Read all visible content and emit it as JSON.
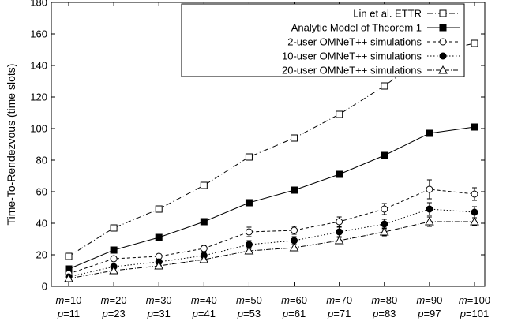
{
  "chart_data": {
    "type": "line",
    "title": "",
    "xlabel": "",
    "ylabel": "Time-To-Rendezvous (time slots)",
    "ylim": [
      0,
      180
    ],
    "yticks": [
      0,
      20,
      40,
      60,
      80,
      100,
      120,
      140,
      160,
      180
    ],
    "grid": false,
    "legend_position": "top-right",
    "categories": [
      {
        "m": "m=10",
        "p": "p=11"
      },
      {
        "m": "m=20",
        "p": "p=23"
      },
      {
        "m": "m=30",
        "p": "p=31"
      },
      {
        "m": "m=40",
        "p": "p=41"
      },
      {
        "m": "m=50",
        "p": "p=53"
      },
      {
        "m": "m=60",
        "p": "p=61"
      },
      {
        "m": "m=70",
        "p": "p=71"
      },
      {
        "m": "m=80",
        "p": "p=83"
      },
      {
        "m": "m=90",
        "p": "p=97"
      },
      {
        "m": "m=100",
        "p": "p=101"
      }
    ],
    "series": [
      {
        "name": "Lin et al. ETTR",
        "marker": "square-open",
        "dash": "7,3,1,3",
        "values": [
          19,
          37,
          49,
          64,
          82,
          94,
          109,
          127,
          148,
          154
        ]
      },
      {
        "name": "Analytic Model of Theorem 1",
        "marker": "square-filled",
        "dash": "",
        "values": [
          11,
          23,
          31,
          41,
          53,
          61,
          71,
          83,
          97,
          101
        ]
      },
      {
        "name": "2-user OMNeT++ simulations",
        "marker": "circle-open",
        "dash": "4,3",
        "values": [
          8,
          17.5,
          19,
          24,
          34.5,
          35.5,
          41,
          49,
          61.5,
          58.5
        ],
        "errors": [
          1,
          1.5,
          1.5,
          2,
          3,
          2.5,
          3,
          3.5,
          6,
          4
        ]
      },
      {
        "name": "10-user OMNeT++ simulations",
        "marker": "circle-filled",
        "dash": "1.5,2.5",
        "values": [
          6,
          12.5,
          15.5,
          19.5,
          26.5,
          29,
          34.5,
          39.5,
          49,
          47
        ],
        "errors": [
          0.8,
          1.5,
          1.5,
          2,
          2.5,
          2.5,
          3,
          3,
          4,
          3.5
        ]
      },
      {
        "name": "20-user OMNeT++ simulations",
        "marker": "triangle-open",
        "dash": "6,2,1,2",
        "values": [
          5,
          10,
          13,
          17,
          22.5,
          24.5,
          29,
          34.5,
          41,
          41
        ],
        "errors": [
          0.6,
          1,
          1,
          1.5,
          2,
          2,
          2,
          2.5,
          3,
          2.5
        ]
      }
    ]
  }
}
